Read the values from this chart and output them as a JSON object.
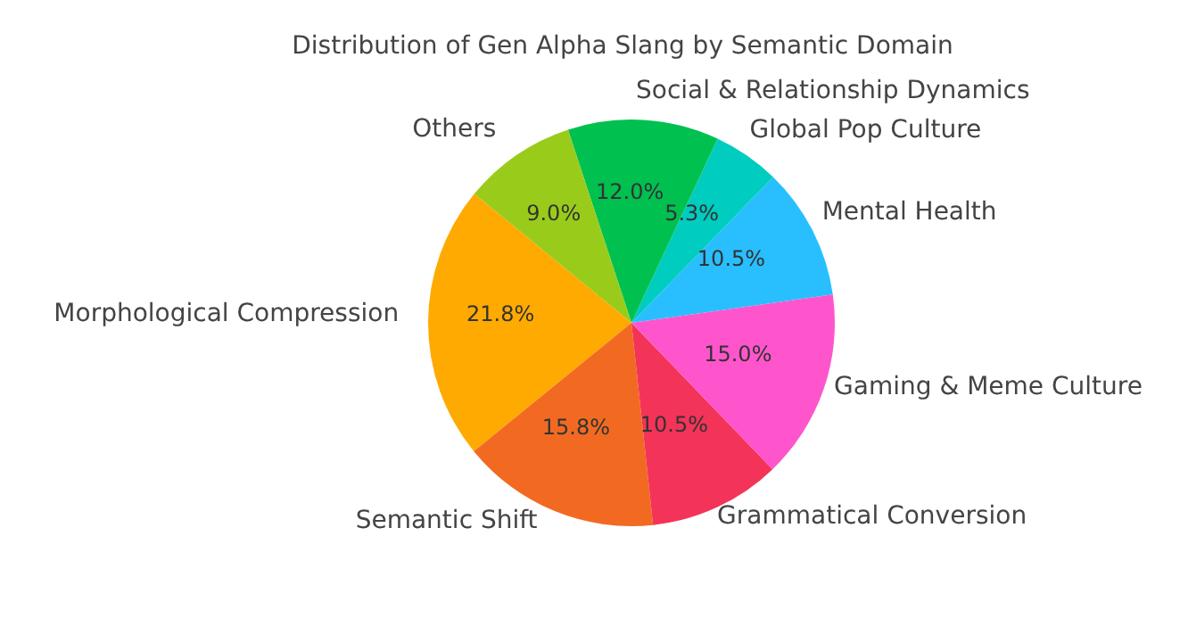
{
  "chart_data": {
    "type": "pie",
    "title": "Distribution of Gen Alpha Slang by Semantic Domain",
    "categories": [
      "Mental Health",
      "Global Pop Culture",
      "Social & Relationship Dynamics",
      "Others",
      "Morphological Compression",
      "Semantic Shift",
      "Grammatical Conversion",
      "Gaming & Meme Culture"
    ],
    "values": [
      10.5,
      5.3,
      12.0,
      9.0,
      21.8,
      15.8,
      10.5,
      15.0
    ],
    "colors": [
      "#29bfff",
      "#00ccc0",
      "#00c050",
      "#99cc1a",
      "#ffaa00",
      "#f26a22",
      "#f43358",
      "#ff55cc"
    ],
    "value_labels": [
      "10.5%",
      "5.3%",
      "12.0%",
      "9.0%",
      "21.8%",
      "15.8%",
      "10.5%",
      "15.0%"
    ],
    "legend": false
  }
}
